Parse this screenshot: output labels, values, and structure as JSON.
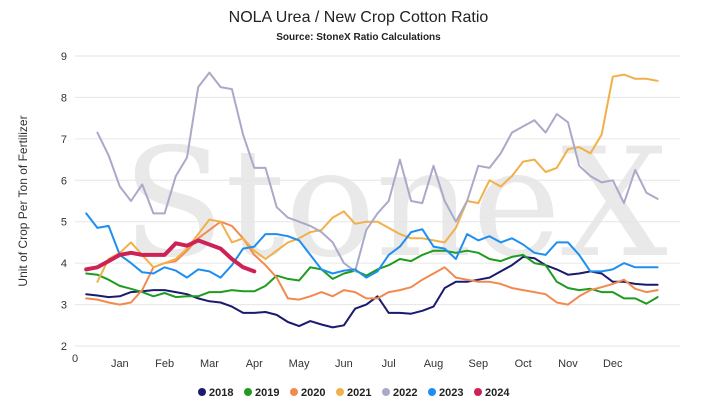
{
  "chart_data": {
    "type": "line",
    "title": "NOLA Urea / New Crop Cotton Ratio",
    "subtitle": "Source: StoneX Ratio Calculations",
    "ylabel": "Unit of Crop Per Ton of Fertilizer",
    "xlabel": "",
    "watermark": "StoneX",
    "ylim": [
      2,
      9
    ],
    "yticks": [
      "2",
      "3",
      "4",
      "5",
      "6",
      "7",
      "8",
      "9"
    ],
    "xlim": [
      0,
      13.5
    ],
    "x_origin_label": "0",
    "months": [
      "Jan",
      "Feb",
      "Mar",
      "Apr",
      "May",
      "Jun",
      "Jul",
      "Aug",
      "Sep",
      "Oct",
      "Nov",
      "Dec"
    ],
    "grid": true,
    "legend_position": "bottom",
    "series": [
      {
        "name": "2018",
        "color": "#1a1a6e",
        "x": [
          0.25,
          0.5,
          0.75,
          1.0,
          1.25,
          1.5,
          1.75,
          2.0,
          2.25,
          2.5,
          2.75,
          3.0,
          3.25,
          3.5,
          3.75,
          4.0,
          4.25,
          4.5,
          4.75,
          5.0,
          5.25,
          5.5,
          5.75,
          6.0,
          6.25,
          6.5,
          6.75,
          7.0,
          7.25,
          7.5,
          7.75,
          8.0,
          8.25,
          8.5,
          8.75,
          9.0,
          9.25,
          9.5,
          9.75,
          10.0,
          10.25,
          10.5,
          10.75,
          11.0,
          11.25,
          11.5,
          11.75,
          12.0,
          12.25,
          12.5,
          12.75,
          13.0
        ],
        "y": [
          3.25,
          3.22,
          3.18,
          3.2,
          3.3,
          3.32,
          3.35,
          3.35,
          3.3,
          3.25,
          3.15,
          3.08,
          3.05,
          2.95,
          2.8,
          2.8,
          2.82,
          2.75,
          2.58,
          2.48,
          2.6,
          2.52,
          2.45,
          2.5,
          2.9,
          3.0,
          3.2,
          2.8,
          2.8,
          2.78,
          2.85,
          2.95,
          3.4,
          3.55,
          3.55,
          3.6,
          3.65,
          3.8,
          3.95,
          4.15,
          4.12,
          3.95,
          3.85,
          3.72,
          3.75,
          3.8,
          3.75,
          3.55,
          3.55,
          3.5,
          3.48,
          3.48
        ]
      },
      {
        "name": "2019",
        "color": "#1f9c1f",
        "x": [
          0.25,
          0.5,
          0.75,
          1.0,
          1.25,
          1.5,
          1.75,
          2.0,
          2.25,
          2.5,
          2.75,
          3.0,
          3.25,
          3.5,
          3.75,
          4.0,
          4.25,
          4.5,
          4.75,
          5.0,
          5.25,
          5.5,
          5.75,
          6.0,
          6.25,
          6.5,
          6.75,
          7.0,
          7.25,
          7.5,
          7.75,
          8.0,
          8.25,
          8.5,
          8.75,
          9.0,
          9.25,
          9.5,
          9.75,
          10.0,
          10.25,
          10.5,
          10.75,
          11.0,
          11.25,
          11.5,
          11.75,
          12.0,
          12.25,
          12.5,
          12.75,
          13.0
        ],
        "y": [
          3.75,
          3.72,
          3.6,
          3.45,
          3.38,
          3.3,
          3.2,
          3.28,
          3.18,
          3.2,
          3.2,
          3.3,
          3.3,
          3.35,
          3.32,
          3.32,
          3.45,
          3.7,
          3.62,
          3.58,
          3.9,
          3.85,
          3.62,
          3.75,
          3.82,
          3.7,
          3.85,
          3.95,
          4.1,
          4.05,
          4.2,
          4.3,
          4.3,
          4.25,
          4.3,
          4.25,
          4.1,
          4.05,
          4.15,
          4.2,
          4.0,
          3.95,
          3.55,
          3.4,
          3.35,
          3.38,
          3.3,
          3.3,
          3.15,
          3.15,
          3.02,
          3.18
        ]
      },
      {
        "name": "2020",
        "color": "#f28a50",
        "x": [
          0.25,
          0.5,
          0.75,
          1.0,
          1.25,
          1.5,
          1.75,
          2.0,
          2.25,
          2.5,
          2.75,
          3.0,
          3.25,
          3.5,
          3.75,
          4.0,
          4.25,
          4.5,
          4.75,
          5.0,
          5.25,
          5.5,
          5.75,
          6.0,
          6.25,
          6.5,
          6.75,
          7.0,
          7.25,
          7.5,
          7.75,
          8.0,
          8.25,
          8.5,
          8.75,
          9.0,
          9.25,
          9.5,
          9.75,
          10.0,
          10.25,
          10.5,
          10.75,
          11.0,
          11.25,
          11.5,
          11.75,
          12.0,
          12.25,
          12.5,
          12.75,
          13.0
        ],
        "y": [
          3.15,
          3.12,
          3.05,
          3.0,
          3.05,
          3.35,
          3.9,
          4.0,
          4.05,
          4.3,
          4.6,
          4.8,
          5.0,
          4.9,
          4.6,
          4.2,
          3.95,
          3.65,
          3.15,
          3.12,
          3.2,
          3.3,
          3.2,
          3.35,
          3.3,
          3.15,
          3.15,
          3.3,
          3.35,
          3.42,
          3.6,
          3.75,
          3.9,
          3.65,
          3.6,
          3.55,
          3.55,
          3.5,
          3.4,
          3.35,
          3.3,
          3.25,
          3.05,
          3.0,
          3.2,
          3.35,
          3.42,
          3.5,
          3.6,
          3.38,
          3.3,
          3.35
        ]
      },
      {
        "name": "2021",
        "color": "#f2b04a",
        "x": [
          0.5,
          0.75,
          1.0,
          1.25,
          1.5,
          1.75,
          2.0,
          2.25,
          2.5,
          2.75,
          3.0,
          3.25,
          3.5,
          3.75,
          4.0,
          4.25,
          4.5,
          4.75,
          5.0,
          5.25,
          5.5,
          5.75,
          6.0,
          6.25,
          6.5,
          6.75,
          7.0,
          7.25,
          7.5,
          7.75,
          8.0,
          8.25,
          8.5,
          8.75,
          9.0,
          9.25,
          9.5,
          9.75,
          10.0,
          10.25,
          10.5,
          10.75,
          11.0,
          11.25,
          11.5,
          11.75,
          12.0,
          12.25,
          12.5,
          12.75,
          13.0
        ],
        "y": [
          3.55,
          4.1,
          4.25,
          4.5,
          4.2,
          3.9,
          4.0,
          4.1,
          4.35,
          4.7,
          5.05,
          5.0,
          4.5,
          4.6,
          4.3,
          4.1,
          4.3,
          4.5,
          4.6,
          4.75,
          4.8,
          5.1,
          5.25,
          4.95,
          5.0,
          5.0,
          4.85,
          4.7,
          4.6,
          4.6,
          4.55,
          4.5,
          4.85,
          5.5,
          5.45,
          6.0,
          5.85,
          6.1,
          6.45,
          6.5,
          6.2,
          6.3,
          6.75,
          6.8,
          6.65,
          7.1,
          8.5,
          8.55,
          8.45,
          8.45,
          8.4
        ]
      },
      {
        "name": "2022",
        "color": "#a9a9c9",
        "x": [
          0.5,
          0.75,
          1.0,
          1.25,
          1.5,
          1.75,
          2.0,
          2.25,
          2.5,
          2.75,
          3.0,
          3.25,
          3.5,
          3.75,
          4.0,
          4.25,
          4.5,
          4.75,
          5.0,
          5.25,
          5.5,
          5.75,
          6.0,
          6.25,
          6.5,
          6.75,
          7.0,
          7.25,
          7.5,
          7.75,
          8.0,
          8.25,
          8.5,
          8.75,
          9.0,
          9.25,
          9.5,
          9.75,
          10.0,
          10.25,
          10.5,
          10.75,
          11.0,
          11.25,
          11.5,
          11.75,
          12.0,
          12.25,
          12.5,
          12.75,
          13.0
        ],
        "y": [
          7.15,
          6.6,
          5.85,
          5.5,
          5.9,
          5.2,
          5.2,
          6.1,
          6.55,
          8.25,
          8.6,
          8.25,
          8.2,
          7.1,
          6.3,
          6.3,
          5.35,
          5.1,
          5.0,
          4.9,
          4.75,
          4.5,
          4.0,
          3.8,
          4.8,
          5.2,
          5.5,
          6.5,
          5.5,
          5.45,
          6.35,
          5.5,
          5.0,
          5.5,
          6.35,
          6.3,
          6.65,
          7.15,
          7.3,
          7.45,
          7.15,
          7.6,
          7.4,
          6.35,
          6.1,
          5.95,
          6.0,
          5.45,
          6.25,
          5.7,
          5.55
        ]
      },
      {
        "name": "2023",
        "color": "#1e8ff0",
        "x": [
          0.25,
          0.5,
          0.75,
          1.0,
          1.25,
          1.5,
          1.75,
          2.0,
          2.25,
          2.5,
          2.75,
          3.0,
          3.25,
          3.5,
          3.75,
          4.0,
          4.25,
          4.5,
          4.75,
          5.0,
          5.25,
          5.5,
          5.75,
          6.0,
          6.25,
          6.5,
          6.75,
          7.0,
          7.25,
          7.5,
          7.75,
          8.0,
          8.25,
          8.5,
          8.75,
          9.0,
          9.25,
          9.5,
          9.75,
          10.0,
          10.25,
          10.5,
          10.75,
          11.0,
          11.25,
          11.5,
          11.75,
          12.0,
          12.25,
          12.5,
          12.75,
          13.0
        ],
        "y": [
          5.2,
          4.85,
          4.9,
          4.2,
          4.0,
          3.78,
          3.75,
          3.9,
          3.82,
          3.65,
          3.85,
          3.8,
          3.65,
          3.95,
          4.35,
          4.4,
          4.7,
          4.7,
          4.65,
          4.55,
          4.2,
          3.85,
          3.75,
          3.82,
          3.85,
          3.65,
          3.8,
          4.2,
          4.4,
          4.75,
          4.82,
          4.4,
          4.35,
          4.1,
          4.7,
          4.55,
          4.65,
          4.5,
          4.6,
          4.45,
          4.25,
          4.2,
          4.5,
          4.5,
          4.2,
          3.8,
          3.8,
          3.85,
          4.0,
          3.9,
          3.9,
          3.9
        ]
      },
      {
        "name": "2024",
        "color": "#cc2255",
        "x": [
          0.25,
          0.5,
          0.75,
          1.0,
          1.25,
          1.5,
          1.75,
          2.0,
          2.25,
          2.5,
          2.75,
          3.0,
          3.25,
          3.5,
          3.75,
          4.0
        ],
        "y": [
          3.85,
          3.9,
          4.05,
          4.2,
          4.25,
          4.2,
          4.2,
          4.2,
          4.48,
          4.42,
          4.55,
          4.45,
          4.35,
          4.1,
          3.9,
          3.8
        ]
      }
    ]
  }
}
